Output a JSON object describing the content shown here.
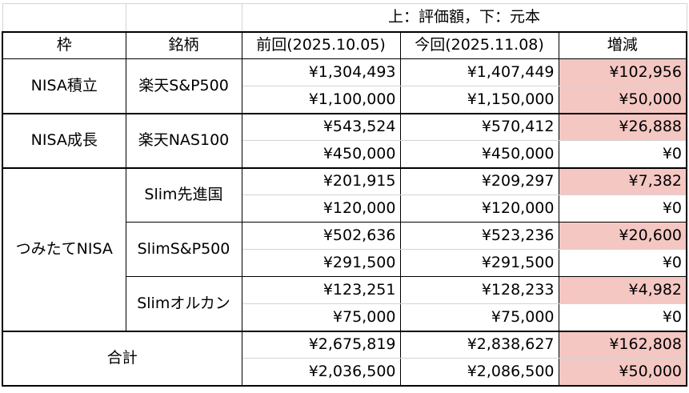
{
  "note": "上：評価額，下：元本",
  "headers": {
    "frame": "枠",
    "fund": "銘柄",
    "prev": "前回(2025.10.05)",
    "curr": "今回(2025.11.08)",
    "diff": "増減"
  },
  "groups": {
    "nisa_tsumitate": {
      "label": "NISA積立",
      "fund": "楽天S&P500",
      "value": {
        "prev": "¥1,304,493",
        "curr": "¥1,407,449",
        "diff": "¥102,956"
      },
      "principal": {
        "prev": "¥1,100,000",
        "curr": "¥1,150,000",
        "diff": "¥50,000"
      }
    },
    "nisa_seicho": {
      "label": "NISA成長",
      "fund": "楽天NAS100",
      "value": {
        "prev": "¥543,524",
        "curr": "¥570,412",
        "diff": "¥26,888"
      },
      "principal": {
        "prev": "¥450,000",
        "curr": "¥450,000",
        "diff": "¥0"
      }
    },
    "tsumitate_nisa": {
      "label": "つみたてNISA",
      "funds": [
        {
          "name": "Slim先進国",
          "value": {
            "prev": "¥201,915",
            "curr": "¥209,297",
            "diff": "¥7,382"
          },
          "principal": {
            "prev": "¥120,000",
            "curr": "¥120,000",
            "diff": "¥0"
          }
        },
        {
          "name": "SlimS&P500",
          "value": {
            "prev": "¥502,636",
            "curr": "¥523,236",
            "diff": "¥20,600"
          },
          "principal": {
            "prev": "¥291,500",
            "curr": "¥291,500",
            "diff": "¥0"
          }
        },
        {
          "name": "Slimオルカン",
          "value": {
            "prev": "¥123,251",
            "curr": "¥128,233",
            "diff": "¥4,982"
          },
          "principal": {
            "prev": "¥75,000",
            "curr": "¥75,000",
            "diff": "¥0"
          }
        }
      ]
    },
    "total": {
      "label": "合計",
      "value": {
        "prev": "¥2,675,819",
        "curr": "¥2,838,627",
        "diff": "¥162,808"
      },
      "principal": {
        "prev": "¥2,036,500",
        "curr": "¥2,086,500",
        "diff": "¥50,000"
      }
    }
  },
  "highlight_color": "#f4c7c3"
}
